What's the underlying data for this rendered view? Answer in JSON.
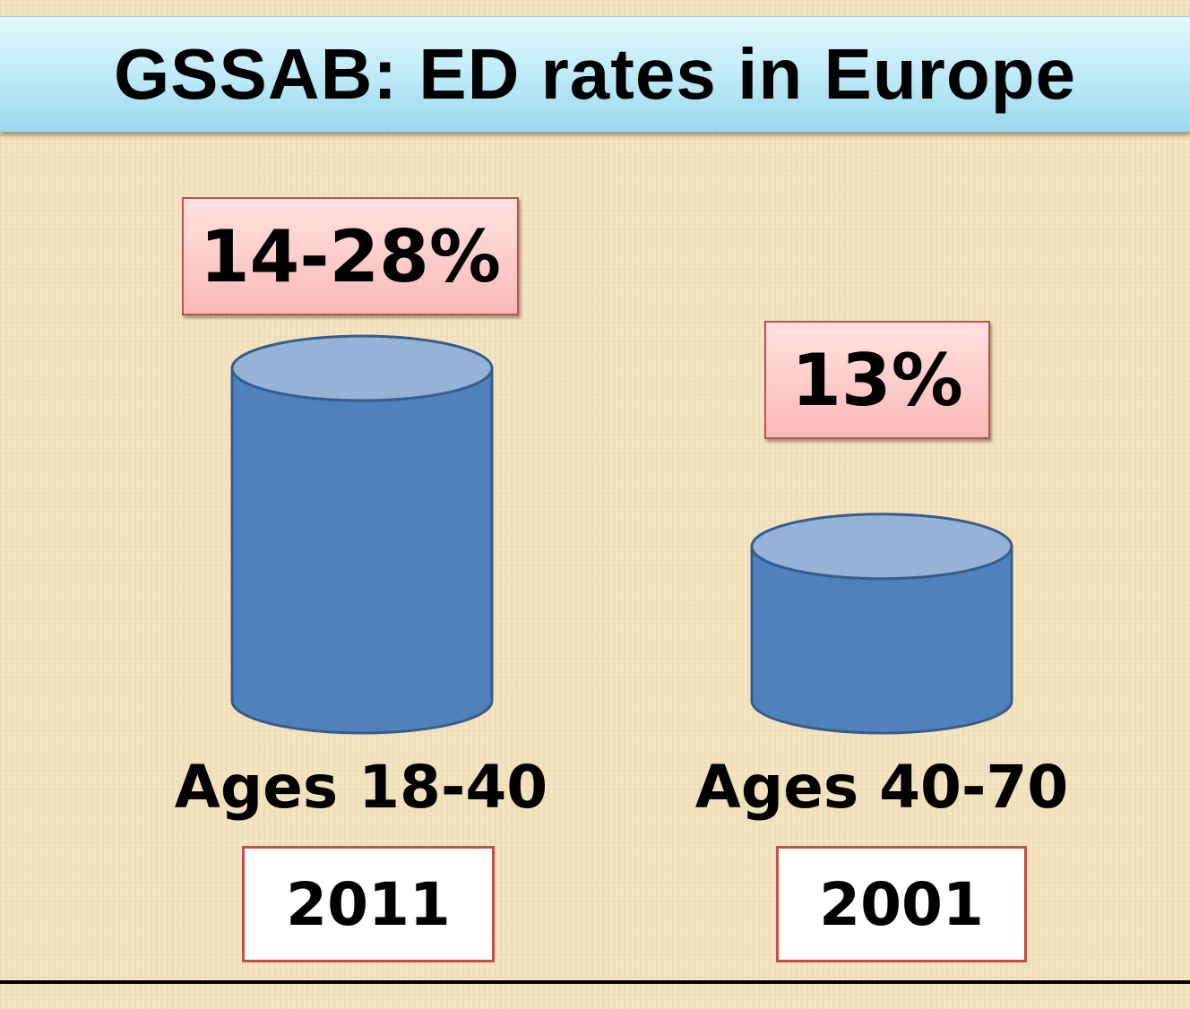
{
  "title": "GSSAB: ED rates in Europe",
  "colors": {
    "cylinder_body": "#4f81bd",
    "cylinder_top": "#95b3d7",
    "cylinder_stroke": "#385d8a",
    "label_box_border": "#c0504d",
    "title_bar": "#b7e6f5"
  },
  "chart_data": {
    "type": "bar",
    "title": "GSSAB: ED rates in Europe",
    "categories": [
      "Ages 18-40",
      "Ages 40-70"
    ],
    "values": [
      28,
      13
    ],
    "value_labels": [
      "14-28%",
      "13%"
    ],
    "years": [
      "2011",
      "2001"
    ],
    "ylim": [
      0,
      30
    ],
    "grid": false,
    "legend": "none"
  }
}
